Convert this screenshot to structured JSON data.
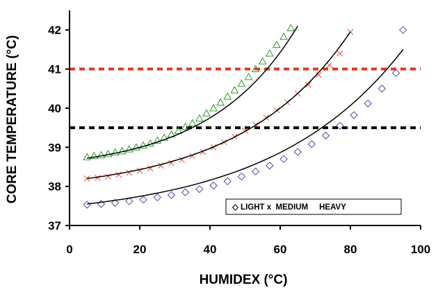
{
  "chart_data": {
    "type": "scatter",
    "title": "",
    "xlabel": "HUMIDEX (°C)",
    "ylabel": "CORE TEMPERATURE (°C)",
    "xlim": [
      0,
      100
    ],
    "ylim": [
      37,
      42.5
    ],
    "x_ticks": [
      0,
      20,
      40,
      60,
      80,
      100
    ],
    "y_ticks": [
      37,
      38,
      39,
      40,
      41,
      42
    ],
    "grid": false,
    "legend_position": "bottom-right",
    "legend_text": "◇ LIGHT x  MEDIUM     HEAVY",
    "reference_lines": [
      {
        "y": 41.0,
        "color": "#e8321e",
        "style": "dashed"
      },
      {
        "y": 39.5,
        "color": "#000000",
        "style": "dashed"
      }
    ],
    "series": [
      {
        "marker": "triangle",
        "color": "#2e9a2e",
        "x": [
          5,
          7,
          9,
          11,
          13,
          15,
          17,
          19,
          21,
          23,
          25,
          27,
          29,
          31,
          33,
          35,
          37,
          39,
          41,
          43,
          45,
          47,
          49,
          51,
          53,
          55,
          57,
          59,
          61,
          63
        ],
        "y": [
          38.75,
          38.78,
          38.8,
          38.83,
          38.87,
          38.9,
          38.95,
          39.0,
          39.05,
          39.1,
          39.17,
          39.25,
          39.33,
          39.42,
          39.52,
          39.62,
          39.74,
          39.87,
          40.0,
          40.15,
          40.3,
          40.46,
          40.63,
          40.8,
          41.0,
          41.2,
          41.4,
          41.62,
          41.83,
          42.05
        ]
      },
      {
        "marker": "x",
        "color": "#e8503a",
        "x": [
          5,
          8,
          11,
          14,
          17,
          20,
          23,
          26,
          29,
          32,
          35,
          38,
          41,
          44,
          47,
          50,
          53,
          56,
          59,
          62,
          65,
          68,
          71,
          74,
          77,
          80
        ],
        "y": [
          38.2,
          38.22,
          38.25,
          38.3,
          38.35,
          38.4,
          38.46,
          38.53,
          38.6,
          38.68,
          38.78,
          38.88,
          39.0,
          39.13,
          39.27,
          39.42,
          39.58,
          39.76,
          39.95,
          40.15,
          40.37,
          40.6,
          40.85,
          41.1,
          41.4,
          41.95
        ]
      },
      {
        "marker": "diamond",
        "color": "#4a4aa8",
        "x": [
          5,
          9,
          13,
          17,
          21,
          25,
          29,
          33,
          37,
          41,
          45,
          49,
          53,
          57,
          61,
          65,
          69,
          73,
          77,
          81,
          85,
          89,
          93,
          95
        ],
        "y": [
          37.53,
          37.55,
          37.58,
          37.62,
          37.66,
          37.72,
          37.78,
          37.85,
          37.93,
          38.02,
          38.13,
          38.25,
          38.38,
          38.53,
          38.7,
          38.88,
          39.08,
          39.3,
          39.55,
          39.82,
          40.12,
          40.5,
          40.9,
          42.0
        ]
      }
    ],
    "fit_curves": [
      {
        "name_ref": 0,
        "x_range": [
          5,
          65
        ],
        "y_start": 38.72,
        "y_end": 42.1
      },
      {
        "name_ref": 1,
        "x_range": [
          5,
          80
        ],
        "y_start": 38.2,
        "y_end": 41.95
      },
      {
        "name_ref": 2,
        "x_range": [
          5,
          95
        ],
        "y_start": 37.55,
        "y_end": 41.5
      }
    ]
  }
}
